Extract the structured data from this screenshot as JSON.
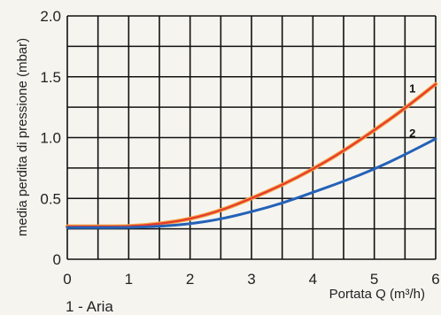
{
  "chart_data": {
    "type": "line",
    "ylabel": "media perdita di pressione (mbar)",
    "xlabel": "Portata Q (m³/h)",
    "caption": "1 - Aria",
    "xlim": [
      0,
      6
    ],
    "ylim": [
      0,
      2.0
    ],
    "x_ticks": [
      "0",
      "1",
      "2",
      "3",
      "4",
      "5",
      "6"
    ],
    "y_ticks": [
      "0",
      "0.5",
      "1.0",
      "1.5",
      "2.0"
    ],
    "grid": true,
    "series": [
      {
        "tag": "1",
        "color": "#e8392f",
        "x": [
          0,
          0.5,
          1,
          1.5,
          2,
          2.5,
          3,
          3.5,
          4,
          4.5,
          5,
          5.5,
          6
        ],
        "y": [
          0.27,
          0.27,
          0.27,
          0.29,
          0.33,
          0.4,
          0.5,
          0.61,
          0.74,
          0.89,
          1.06,
          1.24,
          1.44
        ]
      },
      {
        "tag": "2",
        "color": "#2462b8",
        "x": [
          0,
          0.5,
          1,
          1.5,
          2,
          2.5,
          3,
          3.5,
          4,
          4.5,
          5,
          5.5,
          6
        ],
        "y": [
          0.26,
          0.26,
          0.26,
          0.27,
          0.29,
          0.33,
          0.39,
          0.46,
          0.55,
          0.64,
          0.74,
          0.86,
          0.99
        ]
      }
    ]
  }
}
